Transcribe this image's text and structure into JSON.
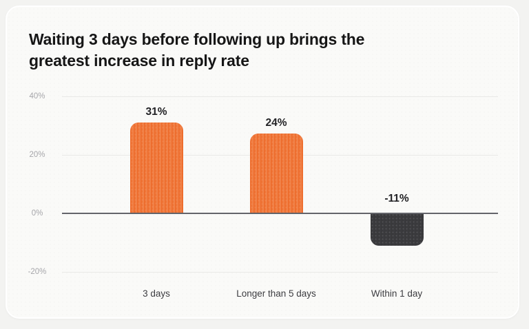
{
  "card": {
    "title_lines": [
      "Waiting 3 days before following up brings the",
      "greatest increase in reply rate"
    ]
  },
  "chart_data": {
    "type": "bar",
    "title": "Waiting 3 days before following up brings the greatest increase in reply rate",
    "categories": [
      "3 days",
      "Longer than 5 days",
      "Within 1 day"
    ],
    "values": [
      31,
      24,
      -11
    ],
    "value_labels": [
      "31%",
      "24%",
      "-11%"
    ],
    "bar_colors": [
      "#ee6c2e",
      "#ee6c2e",
      "#39393b"
    ],
    "xlabel": "",
    "ylabel": "",
    "yticks": [
      40,
      20,
      0,
      -20
    ],
    "ytick_labels": [
      "40%",
      "20%",
      "0%",
      "-20%"
    ],
    "ylim": [
      -28,
      44
    ],
    "grid": true,
    "legend": false,
    "unit": "%",
    "colors": {
      "positive_bar": "#ee6c2e",
      "positive_bar_gradient_end": "#f1874f",
      "negative_bar": "#39393b",
      "value_label": "#232326",
      "category_label": "#3c3c40",
      "axis_tick_label": "#a6a6aa",
      "grid_line": "#e9e9e6",
      "zero_line": "#63646a",
      "card_background": "#fafaf8",
      "page_background": "#f3f3f1",
      "title_text": "#161616"
    }
  }
}
